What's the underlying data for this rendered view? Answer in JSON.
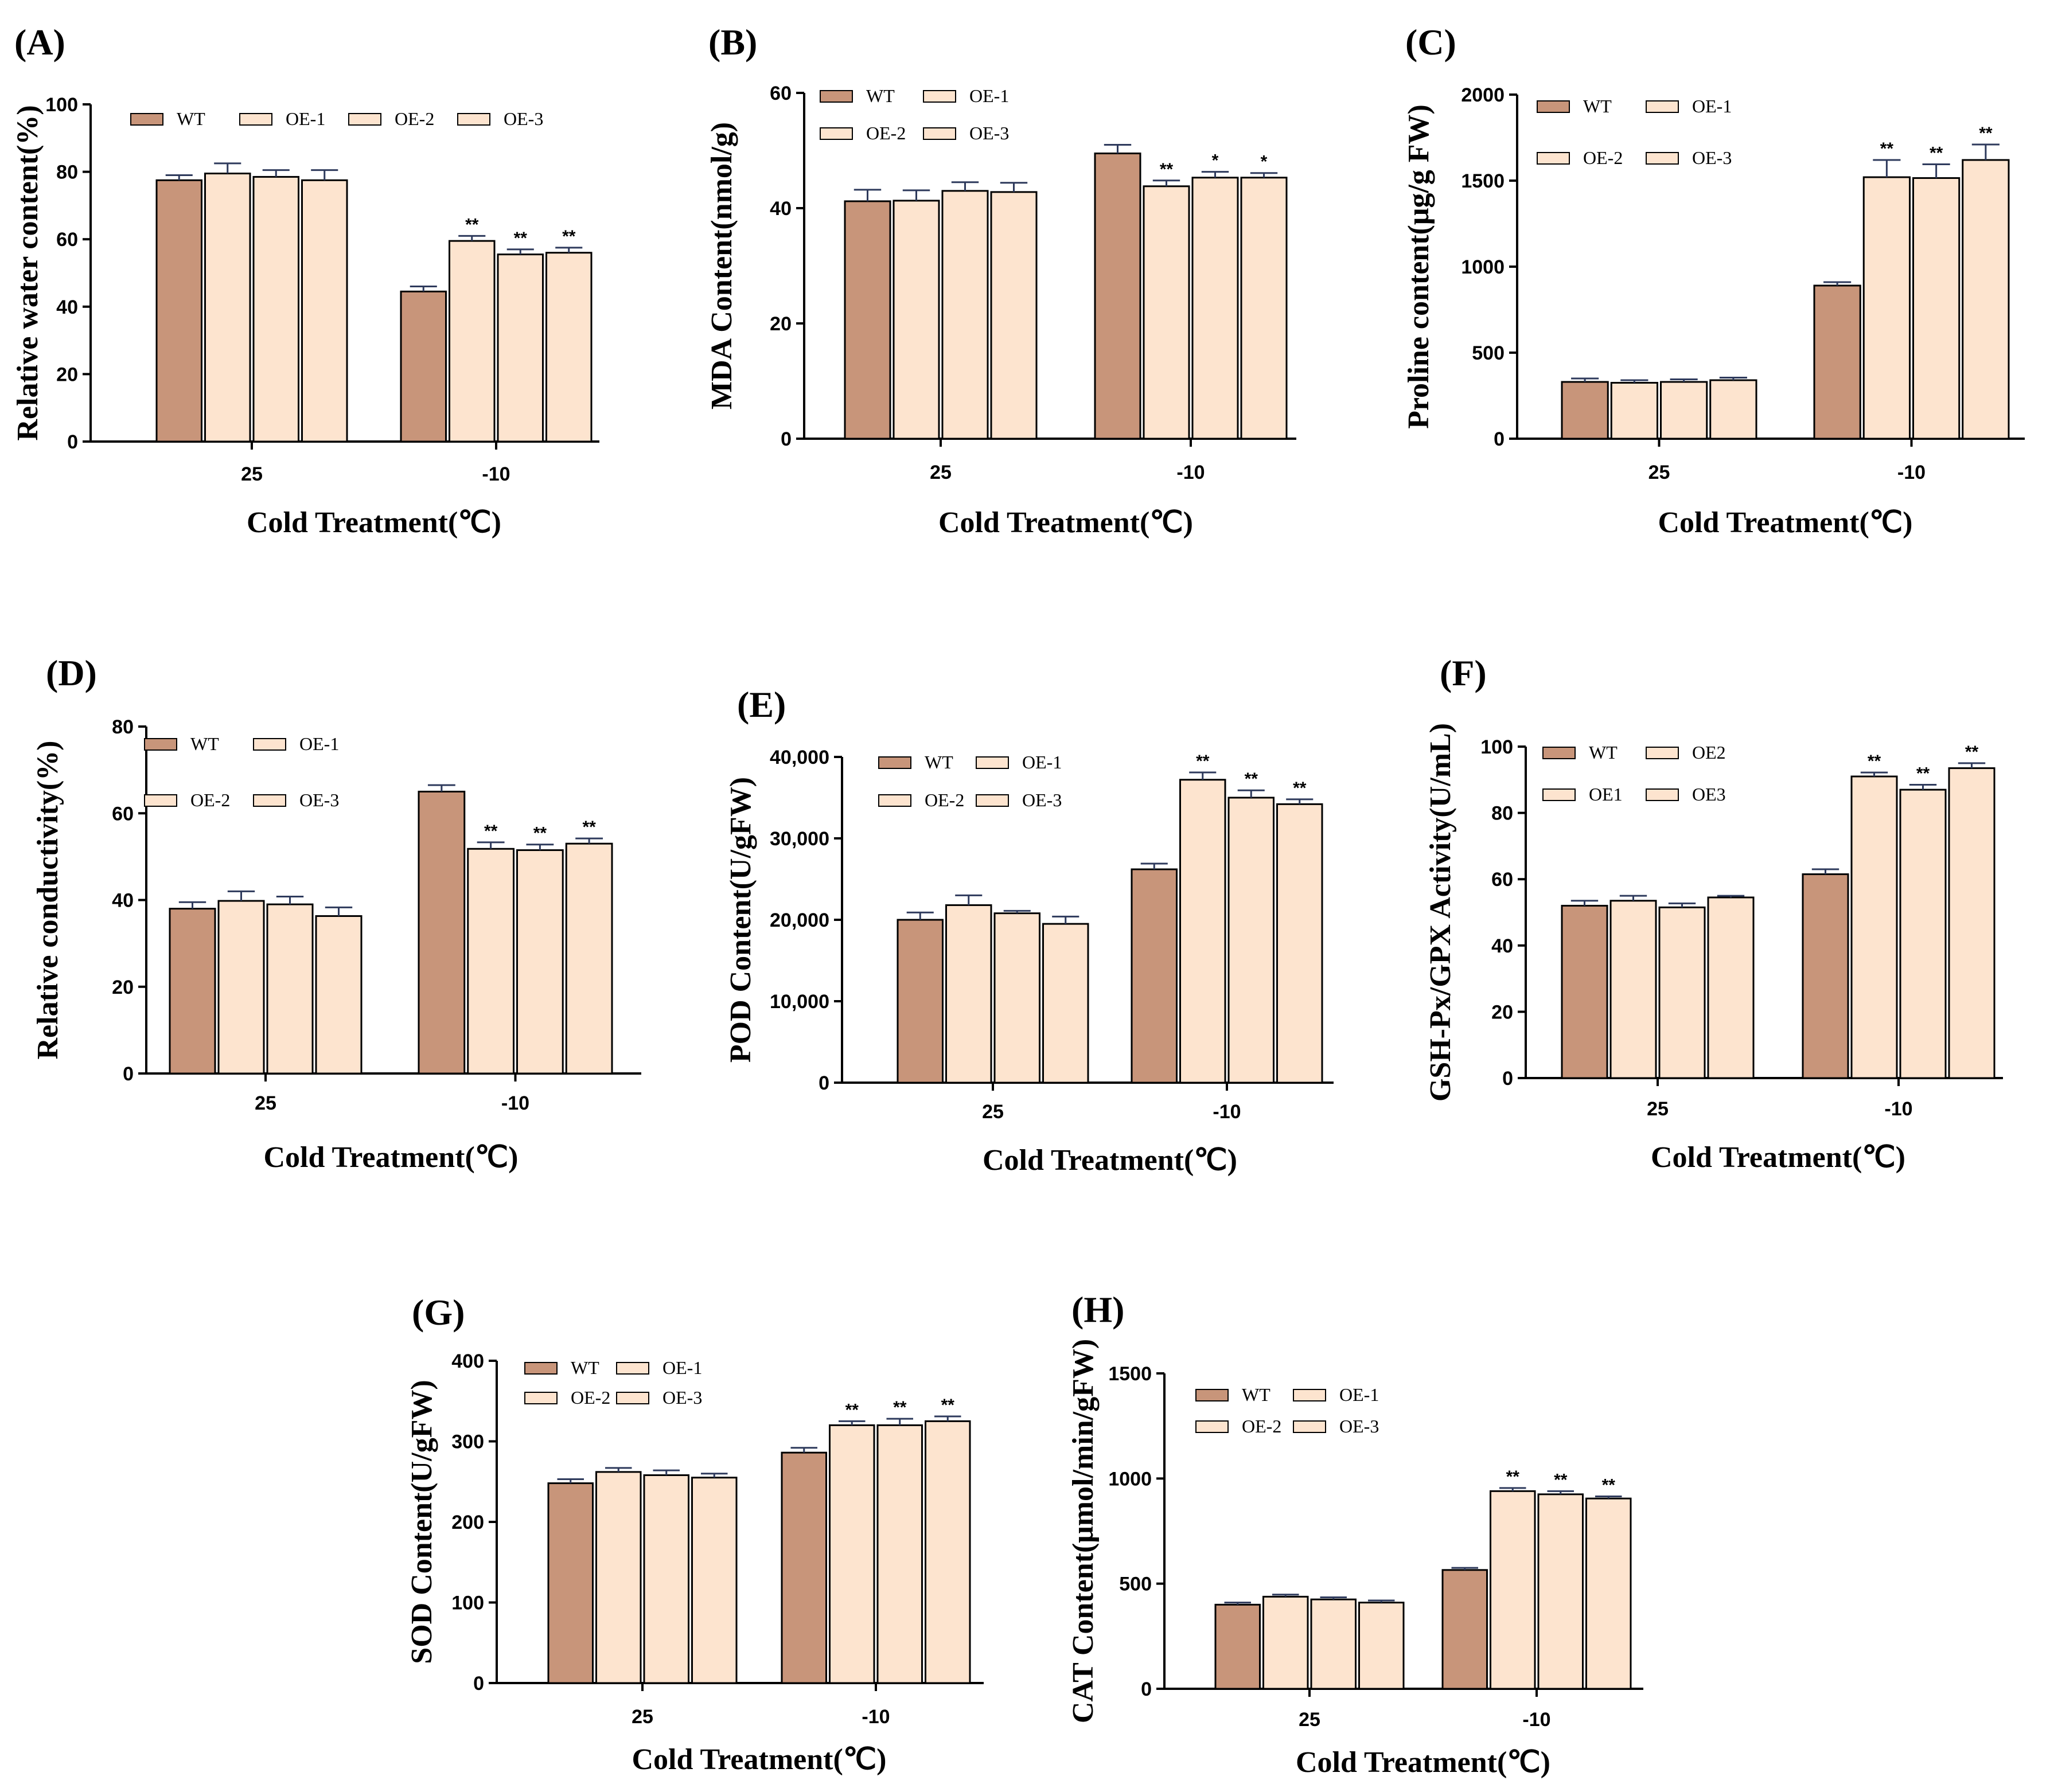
{
  "colors": {
    "wt": "#c8957a",
    "oe": "#fde4cf",
    "stroke": "#000000",
    "error": "#2e3a5c"
  },
  "chart_data": [
    {
      "id": "A",
      "panel_label": "(A)",
      "type": "bar",
      "categories": [
        "25",
        "-10"
      ],
      "xlabel": "Cold Treatment(℃)",
      "ylabel": "Relative water content(%)",
      "ylim": [
        0,
        100
      ],
      "yticks": [
        "0",
        "20",
        "40",
        "60",
        "80",
        "100"
      ],
      "ytick_values": [
        0,
        20,
        40,
        60,
        80,
        100
      ],
      "legend": {
        "placement": "top",
        "rows": 1
      },
      "series": [
        {
          "name": "WT",
          "values": [
            77.5,
            44.5
          ],
          "errors": [
            1.5,
            1.5
          ],
          "sig": [
            "",
            ""
          ]
        },
        {
          "name": "OE-1",
          "values": [
            79.5,
            59.5
          ],
          "errors": [
            3.0,
            1.5
          ],
          "sig": [
            "",
            "**"
          ]
        },
        {
          "name": "OE-2",
          "values": [
            78.5,
            55.5
          ],
          "errors": [
            2.0,
            1.5
          ],
          "sig": [
            "",
            "**"
          ]
        },
        {
          "name": "OE-3",
          "values": [
            77.5,
            56.0
          ],
          "errors": [
            3.0,
            1.5
          ],
          "sig": [
            "",
            "**"
          ]
        }
      ]
    },
    {
      "id": "B",
      "panel_label": "(B)",
      "type": "bar",
      "categories": [
        "25",
        "-10"
      ],
      "xlabel": "Cold Treatment(℃)",
      "ylabel": "MDA Content(nmol/g)",
      "ylim": [
        0,
        60
      ],
      "yticks": [
        "0",
        "20",
        "40",
        "60"
      ],
      "ytick_values": [
        0,
        20,
        40,
        60
      ],
      "legend": {
        "placement": "top",
        "rows": 2
      },
      "series": [
        {
          "name": "WT",
          "values": [
            41.2,
            49.5
          ],
          "errors": [
            2.0,
            1.5
          ],
          "sig": [
            "",
            ""
          ]
        },
        {
          "name": "OE-1",
          "values": [
            41.3,
            43.8
          ],
          "errors": [
            1.8,
            1.0
          ],
          "sig": [
            "",
            "**"
          ]
        },
        {
          "name": "OE-2",
          "values": [
            43.0,
            45.3
          ],
          "errors": [
            1.5,
            1.0
          ],
          "sig": [
            "",
            "*"
          ]
        },
        {
          "name": "OE-3",
          "values": [
            42.8,
            45.3
          ],
          "errors": [
            1.6,
            0.8
          ],
          "sig": [
            "",
            "*"
          ]
        }
      ]
    },
    {
      "id": "C",
      "panel_label": "(C)",
      "type": "bar",
      "categories": [
        "25",
        "-10"
      ],
      "xlabel": "Cold Treatment(℃)",
      "ylabel": "Proline content(μg/g FW)",
      "ylim": [
        0,
        2000
      ],
      "yticks": [
        "0",
        "500",
        "1000",
        "1500",
        "2000"
      ],
      "ytick_values": [
        0,
        500,
        1000,
        1500,
        2000
      ],
      "legend": {
        "placement": "top",
        "rows": 2
      },
      "series": [
        {
          "name": "WT",
          "values": [
            330,
            890
          ],
          "errors": [
            20,
            20
          ],
          "sig": [
            "",
            ""
          ]
        },
        {
          "name": "OE-1",
          "values": [
            325,
            1520
          ],
          "errors": [
            15,
            100
          ],
          "sig": [
            "",
            "**"
          ]
        },
        {
          "name": "OE-2",
          "values": [
            330,
            1515
          ],
          "errors": [
            15,
            80
          ],
          "sig": [
            "",
            "**"
          ]
        },
        {
          "name": "OE-3",
          "values": [
            340,
            1620
          ],
          "errors": [
            15,
            90
          ],
          "sig": [
            "",
            "**"
          ]
        }
      ]
    },
    {
      "id": "D",
      "panel_label": "(D)",
      "type": "bar",
      "categories": [
        "25",
        "-10"
      ],
      "xlabel": "Cold Treatment(℃)",
      "ylabel": "Relative conductivity(%)",
      "ylim": [
        0,
        80
      ],
      "yticks": [
        "0",
        "20",
        "40",
        "60",
        "80"
      ],
      "ytick_values": [
        0,
        20,
        40,
        60,
        80
      ],
      "legend": {
        "placement": "top",
        "rows": 2
      },
      "series": [
        {
          "name": "WT",
          "values": [
            38.0,
            65.0
          ],
          "errors": [
            1.5,
            1.5
          ],
          "sig": [
            "",
            ""
          ]
        },
        {
          "name": "OE-1",
          "values": [
            39.8,
            51.8
          ],
          "errors": [
            2.2,
            1.5
          ],
          "sig": [
            "",
            "**"
          ]
        },
        {
          "name": "OE-2",
          "values": [
            39.0,
            51.5
          ],
          "errors": [
            1.8,
            1.3
          ],
          "sig": [
            "",
            "**"
          ]
        },
        {
          "name": "OE-3",
          "values": [
            36.3,
            53.0
          ],
          "errors": [
            2.0,
            1.2
          ],
          "sig": [
            "",
            "**"
          ]
        }
      ]
    },
    {
      "id": "E",
      "panel_label": "(E)",
      "type": "bar",
      "categories": [
        "25",
        "-10"
      ],
      "xlabel": "Cold Treatment(℃)",
      "ylabel": "POD Content(U/gFW)",
      "ylim": [
        0,
        40000
      ],
      "yticks": [
        "0",
        "10,000",
        "20,000",
        "30,000",
        "40,000"
      ],
      "ytick_values": [
        0,
        10000,
        20000,
        30000,
        40000
      ],
      "legend": {
        "placement": "top",
        "rows": 2
      },
      "series": [
        {
          "name": "WT",
          "values": [
            20000,
            26200
          ],
          "errors": [
            900,
            700
          ],
          "sig": [
            "",
            ""
          ]
        },
        {
          "name": "OE-1",
          "values": [
            21800,
            37200
          ],
          "errors": [
            1200,
            900
          ],
          "sig": [
            "",
            "**"
          ]
        },
        {
          "name": "OE-2",
          "values": [
            20800,
            35000
          ],
          "errors": [
            300,
            900
          ],
          "sig": [
            "",
            "**"
          ]
        },
        {
          "name": "OE-3",
          "values": [
            19500,
            34200
          ],
          "errors": [
            900,
            600
          ],
          "sig": [
            "",
            "**"
          ]
        }
      ]
    },
    {
      "id": "F",
      "panel_label": "(F)",
      "type": "bar",
      "categories": [
        "25",
        "-10"
      ],
      "xlabel": "Cold Treatment(℃)",
      "ylabel": "GSH-Px/GPX Activity(U/mL)",
      "ylim": [
        0,
        100
      ],
      "yticks": [
        "0",
        "20",
        "40",
        "60",
        "80",
        "100"
      ],
      "ytick_values": [
        0,
        20,
        40,
        60,
        80,
        100
      ],
      "legend": {
        "placement": "top",
        "rows": 2
      },
      "series": [
        {
          "name": "WT",
          "values": [
            52.0,
            61.5
          ],
          "errors": [
            1.5,
            1.5
          ],
          "sig": [
            "",
            ""
          ]
        },
        {
          "name": "OE2",
          "values": [
            53.5,
            91.0
          ],
          "errors": [
            1.5,
            1.2
          ],
          "sig": [
            "",
            "**"
          ]
        },
        {
          "name": "OE1",
          "values": [
            51.5,
            87.0
          ],
          "errors": [
            1.2,
            1.5
          ],
          "sig": [
            "",
            "**"
          ]
        },
        {
          "name": "OE3",
          "values": [
            54.5,
            93.5
          ],
          "errors": [
            0.5,
            1.5
          ],
          "sig": [
            "",
            "**"
          ]
        }
      ]
    },
    {
      "id": "G",
      "panel_label": "(G)",
      "type": "bar",
      "categories": [
        "25",
        "-10"
      ],
      "xlabel": "Cold Treatment(℃)",
      "ylabel": "SOD Content(U/gFW)",
      "ylim": [
        0,
        400
      ],
      "yticks": [
        "0",
        "100",
        "200",
        "300",
        "400"
      ],
      "ytick_values": [
        0,
        100,
        200,
        300,
        400
      ],
      "legend": {
        "placement": "top",
        "rows": 2
      },
      "series": [
        {
          "name": "WT",
          "values": [
            248,
            286
          ],
          "errors": [
            5,
            6
          ],
          "sig": [
            "",
            ""
          ]
        },
        {
          "name": "OE-1",
          "values": [
            262,
            320
          ],
          "errors": [
            5,
            5
          ],
          "sig": [
            "",
            "**"
          ]
        },
        {
          "name": "OE-2",
          "values": [
            258,
            320
          ],
          "errors": [
            6,
            8
          ],
          "sig": [
            "",
            "**"
          ]
        },
        {
          "name": "OE-3",
          "values": [
            255,
            325
          ],
          "errors": [
            5,
            6
          ],
          "sig": [
            "",
            "**"
          ]
        }
      ]
    },
    {
      "id": "H",
      "panel_label": "(H)",
      "type": "bar",
      "categories": [
        "25",
        "-10"
      ],
      "xlabel": "Cold Treatment(℃)",
      "ylabel": "CAT Content(μmol/min/gFW)",
      "ylim": [
        0,
        1500
      ],
      "yticks": [
        "0",
        "500",
        "1000",
        "1500"
      ],
      "ytick_values": [
        0,
        500,
        1000,
        1500
      ],
      "legend": {
        "placement": "top",
        "rows": 2
      },
      "series": [
        {
          "name": "WT",
          "values": [
            400,
            565
          ],
          "errors": [
            10,
            10
          ],
          "sig": [
            "",
            ""
          ]
        },
        {
          "name": "OE-1",
          "values": [
            438,
            940
          ],
          "errors": [
            10,
            15
          ],
          "sig": [
            "",
            "**"
          ]
        },
        {
          "name": "OE-2",
          "values": [
            425,
            925
          ],
          "errors": [
            10,
            15
          ],
          "sig": [
            "",
            "**"
          ]
        },
        {
          "name": "OE-3",
          "values": [
            410,
            905
          ],
          "errors": [
            10,
            10
          ],
          "sig": [
            "",
            "**"
          ]
        }
      ]
    }
  ]
}
